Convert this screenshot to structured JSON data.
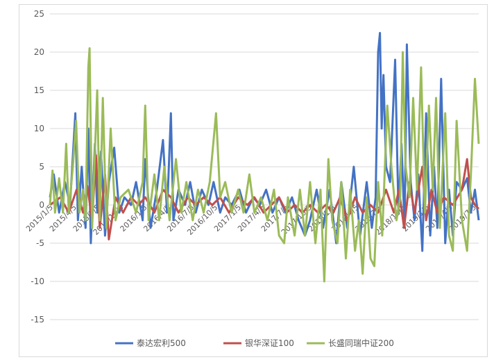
{
  "chart_data": {
    "type": "line",
    "title": "",
    "xlabel": "",
    "ylabel": "",
    "ylim": [
      -15,
      25
    ],
    "y_ticks": [
      25,
      20,
      15,
      10,
      5,
      0,
      -5,
      -10,
      -15
    ],
    "x_tick_labels": [
      "2015/1/5",
      "2015/4/5",
      "2015/7/5",
      "2015/10/5",
      "2016/1/5",
      "2016/4/5",
      "2016/7/5",
      "2016/10/5",
      "2017/1/5",
      "2017/4/5",
      "2017/7/5",
      "2017/10/5",
      "2018/1/5",
      "2018/4/5",
      "2018/7/5",
      "2018/10/5",
      "2019/1/5",
      "2019/4/5",
      "2019/7/5"
    ],
    "x_start": "2015-01-05",
    "x_end": "2019-08-20",
    "grid": true,
    "legend_position": "bottom",
    "series": [
      {
        "name": "泰达宏利500",
        "color": "#4472c4",
        "points": [
          [
            "2015-01-05",
            1
          ],
          [
            "2015-01-20",
            4
          ],
          [
            "2015-02-10",
            -1
          ],
          [
            "2015-03-05",
            3
          ],
          [
            "2015-03-25",
            0
          ],
          [
            "2015-04-15",
            12
          ],
          [
            "2015-04-25",
            -2
          ],
          [
            "2015-05-10",
            5
          ],
          [
            "2015-05-25",
            -3
          ],
          [
            "2015-06-05",
            10
          ],
          [
            "2015-06-15",
            -5
          ],
          [
            "2015-07-01",
            8
          ],
          [
            "2015-07-10",
            -1
          ],
          [
            "2015-07-25",
            7
          ],
          [
            "2015-08-10",
            -4
          ],
          [
            "2015-08-25",
            3
          ],
          [
            "2015-09-15",
            7.5
          ],
          [
            "2015-10-05",
            -1
          ],
          [
            "2015-10-25",
            1
          ],
          [
            "2015-11-20",
            0
          ],
          [
            "2015-12-10",
            3
          ],
          [
            "2016-01-05",
            -2
          ],
          [
            "2016-01-15",
            6
          ],
          [
            "2016-02-05",
            -3
          ],
          [
            "2016-03-01",
            2
          ],
          [
            "2016-03-25",
            8.5
          ],
          [
            "2016-04-10",
            -1
          ],
          [
            "2016-04-25",
            12
          ],
          [
            "2016-05-05",
            -2
          ],
          [
            "2016-05-25",
            2
          ],
          [
            "2016-06-20",
            0
          ],
          [
            "2016-07-10",
            3
          ],
          [
            "2016-08-01",
            -1
          ],
          [
            "2016-08-25",
            2
          ],
          [
            "2016-09-20",
            0
          ],
          [
            "2016-10-10",
            3
          ],
          [
            "2016-11-05",
            -1
          ],
          [
            "2016-11-25",
            1
          ],
          [
            "2016-12-20",
            0
          ],
          [
            "2017-01-20",
            2
          ],
          [
            "2017-02-15",
            -1
          ],
          [
            "2017-03-15",
            1
          ],
          [
            "2017-04-10",
            0
          ],
          [
            "2017-05-05",
            2
          ],
          [
            "2017-05-30",
            -1
          ],
          [
            "2017-06-25",
            1
          ],
          [
            "2017-07-20",
            -1
          ],
          [
            "2017-08-15",
            1
          ],
          [
            "2017-09-10",
            -2
          ],
          [
            "2017-10-05",
            -4
          ],
          [
            "2017-10-25",
            -2
          ],
          [
            "2017-11-20",
            2
          ],
          [
            "2017-12-15",
            -3
          ],
          [
            "2018-01-10",
            2
          ],
          [
            "2018-02-05",
            -5
          ],
          [
            "2018-02-25",
            3
          ],
          [
            "2018-03-20",
            -3
          ],
          [
            "2018-04-15",
            5
          ],
          [
            "2018-05-10",
            -4
          ],
          [
            "2018-06-05",
            3
          ],
          [
            "2018-06-25",
            -3
          ],
          [
            "2018-07-10",
            1
          ],
          [
            "2018-07-20",
            20
          ],
          [
            "2018-07-27",
            22.5
          ],
          [
            "2018-08-03",
            10
          ],
          [
            "2018-08-10",
            17
          ],
          [
            "2018-08-20",
            5
          ],
          [
            "2018-09-05",
            3
          ],
          [
            "2018-09-25",
            19
          ],
          [
            "2018-10-08",
            -1
          ],
          [
            "2018-10-20",
            8
          ],
          [
            "2018-11-01",
            -3
          ],
          [
            "2018-11-10",
            21
          ],
          [
            "2018-11-25",
            3
          ],
          [
            "2018-12-10",
            -2
          ],
          [
            "2018-12-25",
            4
          ],
          [
            "2019-01-10",
            -6
          ],
          [
            "2019-01-25",
            12
          ],
          [
            "2019-02-10",
            -4
          ],
          [
            "2019-02-25",
            5
          ],
          [
            "2019-03-10",
            -3
          ],
          [
            "2019-03-25",
            16.5
          ],
          [
            "2019-04-10",
            -5
          ],
          [
            "2019-04-25",
            2
          ],
          [
            "2019-05-10",
            -4
          ],
          [
            "2019-05-25",
            3
          ],
          [
            "2019-06-15",
            2
          ],
          [
            "2019-07-05",
            3.5
          ],
          [
            "2019-07-20",
            -1
          ],
          [
            "2019-08-05",
            2
          ],
          [
            "2019-08-20",
            -2
          ]
        ]
      },
      {
        "name": "银华深证100",
        "color": "#c0504d",
        "points": [
          [
            "2015-01-05",
            0
          ],
          [
            "2015-02-15",
            1
          ],
          [
            "2015-03-20",
            -1
          ],
          [
            "2015-04-20",
            2
          ],
          [
            "2015-05-15",
            -1
          ],
          [
            "2015-06-01",
            2.5
          ],
          [
            "2015-06-20",
            -2
          ],
          [
            "2015-07-05",
            6.5
          ],
          [
            "2015-07-20",
            -3
          ],
          [
            "2015-08-10",
            4
          ],
          [
            "2015-08-25",
            -4.5
          ],
          [
            "2015-09-20",
            1
          ],
          [
            "2015-10-20",
            -1
          ],
          [
            "2015-11-20",
            1
          ],
          [
            "2015-12-20",
            0
          ],
          [
            "2016-01-15",
            1
          ],
          [
            "2016-02-20",
            -1
          ],
          [
            "2016-03-25",
            2
          ],
          [
            "2016-04-25",
            1
          ],
          [
            "2016-05-25",
            -1
          ],
          [
            "2016-07-01",
            1
          ],
          [
            "2016-08-01",
            0
          ],
          [
            "2016-09-01",
            1
          ],
          [
            "2016-10-05",
            0
          ],
          [
            "2016-11-05",
            1
          ],
          [
            "2016-12-10",
            -1
          ],
          [
            "2017-01-15",
            1
          ],
          [
            "2017-02-20",
            0
          ],
          [
            "2017-03-20",
            1
          ],
          [
            "2017-04-25",
            -1
          ],
          [
            "2017-05-25",
            0
          ],
          [
            "2017-06-25",
            1
          ],
          [
            "2017-07-25",
            -1
          ],
          [
            "2017-08-25",
            0
          ],
          [
            "2017-09-25",
            -1
          ],
          [
            "2017-10-25",
            0
          ],
          [
            "2017-11-25",
            -1
          ],
          [
            "2017-12-25",
            0
          ],
          [
            "2018-01-25",
            -1
          ],
          [
            "2018-02-20",
            1
          ],
          [
            "2018-03-20",
            -2
          ],
          [
            "2018-04-20",
            1
          ],
          [
            "2018-05-20",
            -1
          ],
          [
            "2018-06-20",
            0
          ],
          [
            "2018-07-20",
            -1
          ],
          [
            "2018-08-20",
            2
          ],
          [
            "2018-09-20",
            -1
          ],
          [
            "2018-10-10",
            2
          ],
          [
            "2018-10-30",
            -3
          ],
          [
            "2018-11-20",
            3
          ],
          [
            "2018-12-10",
            -1
          ],
          [
            "2019-01-10",
            5
          ],
          [
            "2019-01-25",
            -2
          ],
          [
            "2019-02-15",
            2
          ],
          [
            "2019-03-10",
            -1
          ],
          [
            "2019-04-05",
            1
          ],
          [
            "2019-05-10",
            0
          ],
          [
            "2019-06-15",
            2
          ],
          [
            "2019-07-05",
            6
          ],
          [
            "2019-07-20",
            1
          ],
          [
            "2019-08-05",
            0
          ],
          [
            "2019-08-20",
            -0.5
          ]
        ]
      },
      {
        "name": "长盛同瑞中证200",
        "color": "#9bbb59",
        "points": [
          [
            "2015-01-05",
            0
          ],
          [
            "2015-01-15",
            4.5
          ],
          [
            "2015-01-25",
            -1
          ],
          [
            "2015-02-10",
            3.5
          ],
          [
            "2015-02-25",
            -1
          ],
          [
            "2015-03-10",
            8
          ],
          [
            "2015-03-20",
            -1
          ],
          [
            "2015-04-05",
            5
          ],
          [
            "2015-04-18",
            11
          ],
          [
            "2015-05-01",
            -1
          ],
          [
            "2015-05-15",
            2
          ],
          [
            "2015-05-25",
            -2
          ],
          [
            "2015-06-05",
            18
          ],
          [
            "2015-06-10",
            20.5
          ],
          [
            "2015-06-20",
            -3
          ],
          [
            "2015-07-10",
            15
          ],
          [
            "2015-07-20",
            -2
          ],
          [
            "2015-08-01",
            14
          ],
          [
            "2015-08-15",
            -3
          ],
          [
            "2015-09-01",
            10
          ],
          [
            "2015-09-20",
            -2
          ],
          [
            "2015-10-10",
            1
          ],
          [
            "2015-11-10",
            2
          ],
          [
            "2015-12-10",
            -1
          ],
          [
            "2016-01-05",
            3
          ],
          [
            "2016-01-15",
            13
          ],
          [
            "2016-01-28",
            -2
          ],
          [
            "2016-02-20",
            4
          ],
          [
            "2016-03-10",
            -2
          ],
          [
            "2016-03-30",
            5
          ],
          [
            "2016-04-20",
            -2
          ],
          [
            "2016-05-15",
            6
          ],
          [
            "2016-06-05",
            -1
          ],
          [
            "2016-06-25",
            3
          ],
          [
            "2016-07-20",
            -2
          ],
          [
            "2016-08-10",
            2
          ],
          [
            "2016-09-01",
            -1
          ],
          [
            "2016-09-25",
            3
          ],
          [
            "2016-10-20",
            12
          ],
          [
            "2016-11-05",
            1
          ],
          [
            "2016-11-25",
            3
          ],
          [
            "2016-12-20",
            -1
          ],
          [
            "2017-01-15",
            2
          ],
          [
            "2017-02-05",
            -1
          ],
          [
            "2017-02-28",
            4
          ],
          [
            "2017-03-20",
            -1
          ],
          [
            "2017-04-15",
            1
          ],
          [
            "2017-05-10",
            -2
          ],
          [
            "2017-06-05",
            2
          ],
          [
            "2017-06-25",
            -4
          ],
          [
            "2017-07-15",
            -5
          ],
          [
            "2017-07-30",
            1
          ],
          [
            "2017-08-25",
            -4
          ],
          [
            "2017-09-15",
            2
          ],
          [
            "2017-10-05",
            -4
          ],
          [
            "2017-10-25",
            3
          ],
          [
            "2017-11-15",
            -5
          ],
          [
            "2017-12-05",
            2
          ],
          [
            "2017-12-20",
            -10
          ],
          [
            "2018-01-05",
            6
          ],
          [
            "2018-01-20",
            -2
          ],
          [
            "2018-02-10",
            -5
          ],
          [
            "2018-02-25",
            3
          ],
          [
            "2018-03-15",
            -7
          ],
          [
            "2018-04-01",
            2
          ],
          [
            "2018-04-20",
            -6
          ],
          [
            "2018-05-05",
            -2
          ],
          [
            "2018-05-20",
            -9
          ],
          [
            "2018-06-05",
            1
          ],
          [
            "2018-06-20",
            -7
          ],
          [
            "2018-07-05",
            -8
          ],
          [
            "2018-07-20",
            3
          ],
          [
            "2018-08-05",
            -4
          ],
          [
            "2018-08-25",
            13
          ],
          [
            "2018-09-10",
            5
          ],
          [
            "2018-09-30",
            -2
          ],
          [
            "2018-10-15",
            1
          ],
          [
            "2018-10-25",
            20
          ],
          [
            "2018-11-05",
            5
          ],
          [
            "2018-11-20",
            1
          ],
          [
            "2018-12-05",
            14
          ],
          [
            "2018-12-20",
            2
          ],
          [
            "2019-01-05",
            18
          ],
          [
            "2019-01-20",
            -1
          ],
          [
            "2019-02-05",
            13
          ],
          [
            "2019-02-20",
            2
          ],
          [
            "2019-03-05",
            14
          ],
          [
            "2019-03-20",
            -3
          ],
          [
            "2019-04-10",
            12
          ],
          [
            "2019-04-25",
            -4
          ],
          [
            "2019-05-10",
            -6
          ],
          [
            "2019-05-25",
            11
          ],
          [
            "2019-06-15",
            -2
          ],
          [
            "2019-07-05",
            -6
          ],
          [
            "2019-07-20",
            4
          ],
          [
            "2019-08-05",
            16.5
          ],
          [
            "2019-08-20",
            8
          ]
        ]
      }
    ]
  }
}
